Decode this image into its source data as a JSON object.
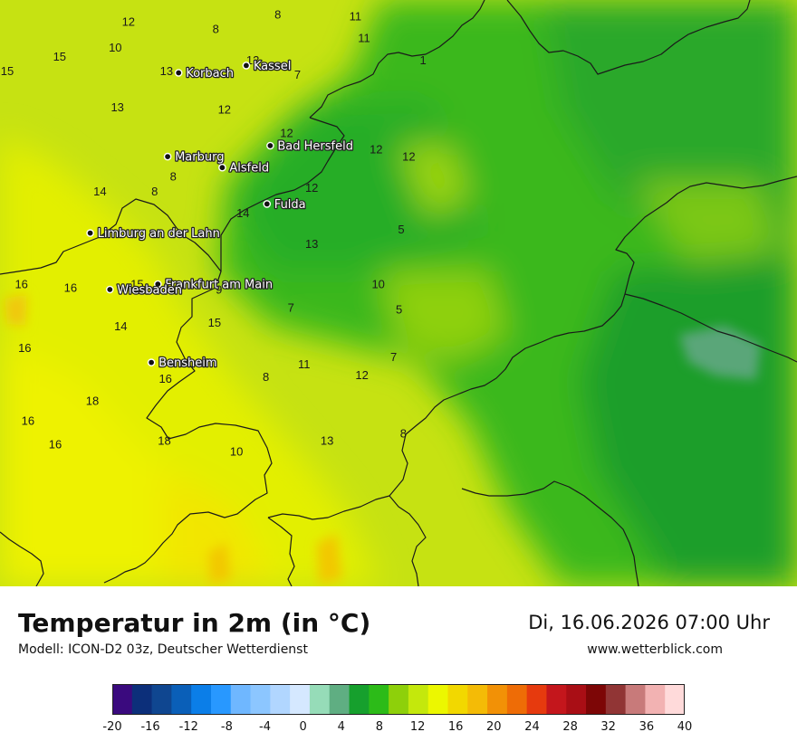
{
  "header": {
    "title": "Temperatur in 2m (in °C)",
    "model": "Modell: ICON-D2 03z, Deutscher Wetterdienst",
    "datetime": "Di, 16.06.2026 07:00 Uhr",
    "website": "www.wetterblick.com"
  },
  "cities": [
    {
      "name": "Kassel",
      "lon": 9.49,
      "lat": 51.31
    },
    {
      "name": "Korbach",
      "lon": 8.87,
      "lat": 51.27
    },
    {
      "name": "Bad Hersfeld",
      "lon": 9.71,
      "lat": 50.87
    },
    {
      "name": "Marburg",
      "lon": 8.77,
      "lat": 50.81
    },
    {
      "name": "Alsfeld",
      "lon": 9.27,
      "lat": 50.75
    },
    {
      "name": "Fulda",
      "lon": 9.68,
      "lat": 50.55
    },
    {
      "name": "Limburg an der Lahn",
      "lon": 8.06,
      "lat": 50.39
    },
    {
      "name": "Frankfurt am Main",
      "lon": 8.68,
      "lat": 50.11
    },
    {
      "name": "Wiesbaden",
      "lon": 8.24,
      "lat": 50.08
    },
    {
      "name": "Bensheim",
      "lon": 8.62,
      "lat": 49.68
    }
  ],
  "temperature_labels": [
    {
      "v": "8",
      "lon": 9.78,
      "lat": 51.59
    },
    {
      "v": "11",
      "lon": 10.49,
      "lat": 51.58
    },
    {
      "v": "12",
      "lon": 8.41,
      "lat": 51.55
    },
    {
      "v": "8",
      "lon": 9.21,
      "lat": 51.51
    },
    {
      "v": "11",
      "lon": 10.57,
      "lat": 51.46
    },
    {
      "v": "15",
      "lon": 7.78,
      "lat": 51.36
    },
    {
      "v": "10",
      "lon": 8.29,
      "lat": 51.41
    },
    {
      "v": "12",
      "lon": 9.55,
      "lat": 51.34
    },
    {
      "v": "1",
      "lon": 11.11,
      "lat": 51.34
    },
    {
      "v": "15",
      "lon": 7.3,
      "lat": 51.28
    },
    {
      "v": "13",
      "lon": 8.76,
      "lat": 51.28
    },
    {
      "v": "7",
      "lon": 9.96,
      "lat": 51.26
    },
    {
      "v": "13",
      "lon": 8.31,
      "lat": 51.08
    },
    {
      "v": "12",
      "lon": 9.29,
      "lat": 51.07
    },
    {
      "v": "12",
      "lon": 9.86,
      "lat": 50.94
    },
    {
      "v": "12",
      "lon": 10.68,
      "lat": 50.85
    },
    {
      "v": "12",
      "lon": 10.98,
      "lat": 50.81
    },
    {
      "v": "8",
      "lon": 8.82,
      "lat": 50.7
    },
    {
      "v": "12",
      "lon": 10.09,
      "lat": 50.64
    },
    {
      "v": "14",
      "lon": 8.15,
      "lat": 50.62
    },
    {
      "v": "8",
      "lon": 8.65,
      "lat": 50.62
    },
    {
      "v": "14",
      "lon": 9.46,
      "lat": 50.5
    },
    {
      "v": "5",
      "lon": 10.91,
      "lat": 50.41
    },
    {
      "v": "13",
      "lon": 10.09,
      "lat": 50.33
    },
    {
      "v": "16",
      "lon": 7.43,
      "lat": 50.11
    },
    {
      "v": "16",
      "lon": 7.88,
      "lat": 50.09
    },
    {
      "v": "15",
      "lon": 8.49,
      "lat": 50.11
    },
    {
      "v": "9",
      "lon": 9.24,
      "lat": 50.08
    },
    {
      "v": "10",
      "lon": 10.7,
      "lat": 50.11
    },
    {
      "v": "7",
      "lon": 9.9,
      "lat": 49.98
    },
    {
      "v": "5",
      "lon": 10.89,
      "lat": 49.97
    },
    {
      "v": "14",
      "lon": 8.34,
      "lat": 49.88
    },
    {
      "v": "15",
      "lon": 9.2,
      "lat": 49.9
    },
    {
      "v": "16",
      "lon": 7.46,
      "lat": 49.76
    },
    {
      "v": "7",
      "lon": 10.84,
      "lat": 49.71
    },
    {
      "v": "11",
      "lon": 10.02,
      "lat": 49.67
    },
    {
      "v": "8",
      "lon": 9.67,
      "lat": 49.6
    },
    {
      "v": "12",
      "lon": 10.55,
      "lat": 49.61
    },
    {
      "v": "16",
      "lon": 8.75,
      "lat": 49.59
    },
    {
      "v": "18",
      "lon": 8.08,
      "lat": 49.47
    },
    {
      "v": "16",
      "lon": 7.49,
      "lat": 49.36
    },
    {
      "v": "8",
      "lon": 10.93,
      "lat": 49.29
    },
    {
      "v": "13",
      "lon": 10.23,
      "lat": 49.25
    },
    {
      "v": "18",
      "lon": 8.74,
      "lat": 49.25
    },
    {
      "v": "16",
      "lon": 7.74,
      "lat": 49.23
    },
    {
      "v": "10",
      "lon": 9.4,
      "lat": 49.19
    }
  ],
  "colorbar": {
    "ticks": [
      "-20",
      "-16",
      "-12",
      "-8",
      "-4",
      "0",
      "4",
      "8",
      "12",
      "16",
      "20",
      "24",
      "28",
      "32",
      "36",
      "40"
    ],
    "colors": [
      "#3a0a7e",
      "#0c2f7a",
      "#0f4690",
      "#0a5fb8",
      "#0b7ee8",
      "#2898ff",
      "#6fb7ff",
      "#8cc6ff",
      "#b1d6ff",
      "#d5e8ff",
      "#96dcb8",
      "#5fae82",
      "#16a02d",
      "#2cbb18",
      "#8ed00a",
      "#c4e80c",
      "#ecf700",
      "#f2d800",
      "#f4bb06",
      "#f29106",
      "#ee6c06",
      "#e63a0e",
      "#c4161c",
      "#a90e15",
      "#7d0606",
      "#913535",
      "#c87a7a",
      "#f2b2b2",
      "#ffdada"
    ]
  }
}
